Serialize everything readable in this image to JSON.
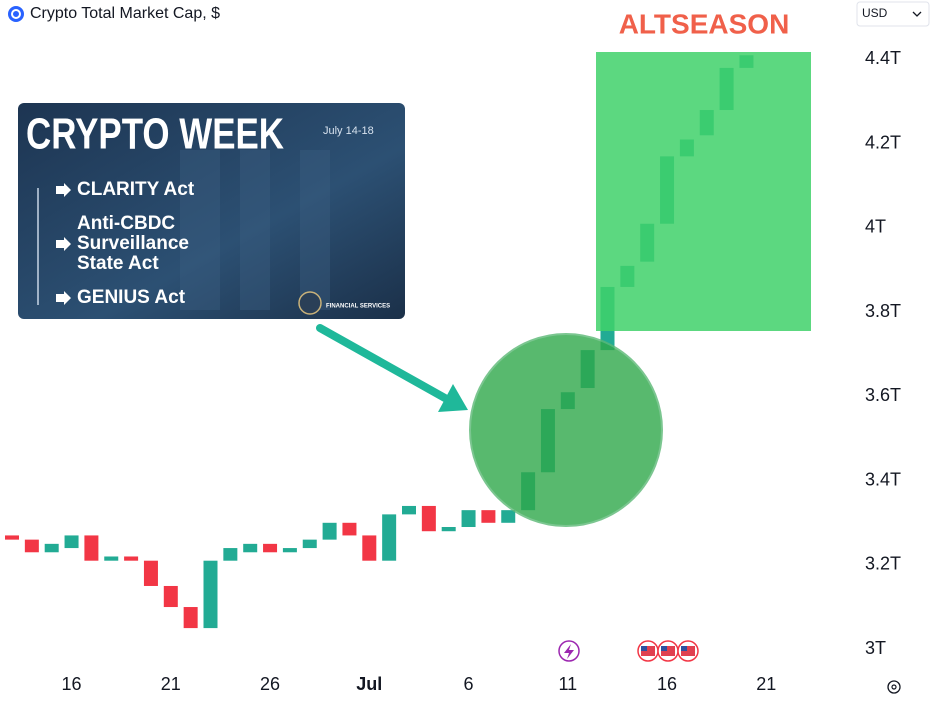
{
  "chart_data": {
    "type": "candlestick",
    "title": "Crypto Total Market Cap, $",
    "currency": "USD",
    "annotation": "ALTSEASON",
    "categories": [
      null,
      null,
      null,
      "16",
      null,
      null,
      null,
      null,
      "21",
      null,
      null,
      null,
      null,
      "26",
      null,
      null,
      null,
      null,
      "Jul",
      null,
      null,
      null,
      null,
      "6",
      null,
      null,
      null,
      null,
      "11",
      null,
      null,
      null,
      null,
      "16",
      null,
      null,
      null,
      null,
      "21"
    ],
    "open": [
      3.27,
      3.26,
      3.23,
      3.24,
      3.27,
      3.21,
      3.22,
      3.21,
      3.15,
      3.1,
      3.05,
      3.21,
      3.23,
      3.25,
      3.23,
      3.24,
      3.26,
      3.3,
      3.27,
      3.21,
      3.32,
      3.34,
      3.28,
      3.29,
      3.33,
      3.3,
      3.33,
      3.42,
      3.57,
      3.62,
      3.71,
      3.86,
      3.92,
      4.01,
      4.17,
      4.22,
      4.28,
      4.38,
      null
    ],
    "close": [
      3.26,
      3.23,
      3.25,
      3.27,
      3.21,
      3.22,
      3.21,
      3.15,
      3.1,
      3.05,
      3.21,
      3.24,
      3.25,
      3.23,
      3.24,
      3.26,
      3.3,
      3.27,
      3.21,
      3.32,
      3.34,
      3.28,
      3.29,
      3.33,
      3.3,
      3.33,
      3.42,
      3.57,
      3.61,
      3.71,
      3.86,
      3.91,
      4.01,
      4.17,
      4.21,
      4.28,
      4.38,
      4.41,
      null
    ],
    "up_color": "#22ab94",
    "down_color": "#f23645",
    "ylim": [
      2.96,
      4.47
    ],
    "yticks": [
      {
        "value": 3,
        "label": "3T"
      },
      {
        "value": 3.2,
        "label": "3.2T"
      },
      {
        "value": 3.4,
        "label": "3.4T"
      },
      {
        "value": 3.6,
        "label": "3.6T"
      },
      {
        "value": 3.8,
        "label": "3.8T"
      },
      {
        "value": 4,
        "label": "4T"
      },
      {
        "value": 4.2,
        "label": "4.2T"
      },
      {
        "value": 4.4,
        "label": "4.4T"
      }
    ],
    "grid": false
  },
  "image_card": {
    "title": "CRYPTO WEEK",
    "dates": "July 14-18",
    "items": [
      [
        "CLARITY Act"
      ],
      [
        "Anti-CBDC",
        "Surveillance",
        "State Act"
      ],
      [
        "GENIUS Act"
      ]
    ],
    "seal": "FINANCIAL SERVICES"
  }
}
